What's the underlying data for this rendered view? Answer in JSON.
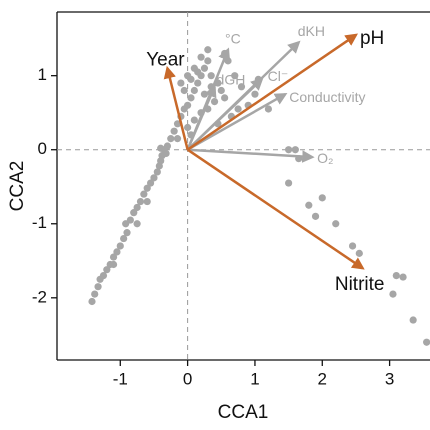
{
  "chart_data": {
    "type": "biplot",
    "x_label": "CCA1",
    "y_label": "CCA2",
    "xlim": [
      -1.94,
      3.6
    ],
    "ylim": [
      -2.84,
      1.86
    ],
    "xticks": [
      -1,
      0,
      1,
      2,
      3
    ],
    "yticks": [
      -2,
      -1,
      0,
      1
    ],
    "point_color": "#a6a6a6",
    "x": [
      -1.42,
      -1.38,
      -1.33,
      -1.3,
      -1.25,
      -1.2,
      -1.15,
      -1.1,
      -1.05,
      -1.0,
      -0.95,
      -0.9,
      -0.92,
      -0.85,
      -0.8,
      -0.75,
      -0.7,
      -0.65,
      -0.6,
      -0.55,
      -0.5,
      -0.45,
      -0.42,
      -0.4,
      -0.38,
      -0.35,
      -0.3,
      -0.4,
      -0.32,
      -0.25,
      -0.2,
      -0.15,
      -0.1,
      -0.05,
      0.0,
      0.05,
      0.1,
      0.15,
      0.2,
      0.25,
      0.3,
      0.3,
      0.2,
      0.1,
      0.0,
      -0.1,
      -0.05,
      0.05,
      0.15,
      0.35,
      0.45,
      0.5,
      0.55,
      0.4,
      0.3,
      0.2,
      0.1,
      0.25,
      0.35,
      0.6,
      0.55,
      0.7,
      0.8,
      0.9,
      1.0,
      0.75,
      0.65,
      0.45,
      0.0,
      -0.15,
      0.05,
      1.2,
      1.05,
      1.5,
      1.6,
      1.5,
      1.65,
      2.0,
      1.8,
      1.9,
      2.2,
      2.45,
      2.55,
      3.1,
      3.2,
      3.05,
      3.35,
      3.55,
      -0.75,
      -0.6,
      -1.1
    ],
    "y": [
      -2.05,
      -1.95,
      -1.85,
      -1.75,
      -1.7,
      -1.62,
      -1.55,
      -1.45,
      -1.38,
      -1.3,
      -1.2,
      -1.12,
      -1.0,
      -0.95,
      -0.85,
      -0.78,
      -0.7,
      -0.6,
      -0.52,
      -0.45,
      -0.38,
      -0.3,
      -0.22,
      -0.15,
      -0.08,
      0.0,
      0.05,
      0.02,
      -0.05,
      0.15,
      0.25,
      0.35,
      0.45,
      0.55,
      0.6,
      0.7,
      0.8,
      0.9,
      1.0,
      1.1,
      1.2,
      1.35,
      1.25,
      1.1,
      1.0,
      0.9,
      0.8,
      0.95,
      1.05,
      1.0,
      0.9,
      0.8,
      0.7,
      0.65,
      0.55,
      0.5,
      0.4,
      0.75,
      0.85,
      1.2,
      1.3,
      1.0,
      0.85,
      0.6,
      0.75,
      0.55,
      0.45,
      0.35,
      0.3,
      0.15,
      0.2,
      0.55,
      0.95,
      0.0,
      0.0,
      -0.45,
      -0.12,
      -0.65,
      -0.75,
      -0.9,
      -1.0,
      -1.3,
      -1.4,
      -1.7,
      -1.72,
      -1.95,
      -2.3,
      -2.6,
      -1.0,
      -0.7,
      -1.55
    ],
    "arrows": [
      {
        "name": "°C",
        "x": 0.6,
        "y": 1.35,
        "color": "#a6a6a6",
        "label_color": "#a6a6a6"
      },
      {
        "name": "dGH",
        "x": 0.4,
        "y": 0.85,
        "color": "#a6a6a6",
        "label_color": "#a6a6a6"
      },
      {
        "name": "Cl⁻",
        "x": 1.1,
        "y": 0.95,
        "color": "#a6a6a6",
        "label_color": "#a6a6a6"
      },
      {
        "name": "dKH",
        "x": 1.65,
        "y": 1.45,
        "color": "#a6a6a6",
        "label_color": "#a6a6a6"
      },
      {
        "name": "Conductivity",
        "x": 1.45,
        "y": 0.75,
        "color": "#a6a6a6",
        "label_color": "#a6a6a6"
      },
      {
        "name": "O₂",
        "x": 1.85,
        "y": -0.1,
        "color": "#a6a6a6",
        "label_color": "#a6a6a6"
      },
      {
        "name": "Year",
        "x": -0.3,
        "y": 1.1,
        "color": "#c8692a",
        "label_color": "#111111"
      },
      {
        "name": "pH",
        "x": 2.5,
        "y": 1.55,
        "color": "#c8692a",
        "label_color": "#111111"
      },
      {
        "name": "Nitrite",
        "x": 2.6,
        "y": -1.6,
        "color": "#c8692a",
        "label_color": "#111111"
      }
    ]
  }
}
